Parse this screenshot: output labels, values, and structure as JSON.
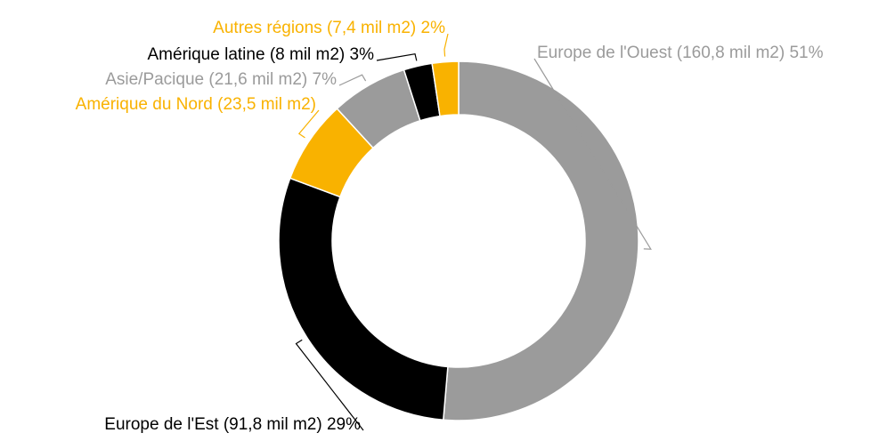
{
  "chart_data": {
    "type": "donut",
    "categories": [
      "Europe de l'Ouest",
      "Europe de l'Est",
      "Amérique du Nord",
      "Asie/Pacique",
      "Amérique latine",
      "Autres régions"
    ],
    "values": [
      160.8,
      91.8,
      23.5,
      21.6,
      8,
      7.4
    ],
    "value_labels": [
      "(160,8 mil m2) 51%",
      "(91,8 mil m2) 29%",
      "(23,5 mil m2)",
      "(21,6 mil m2) 7%",
      "(8 mil m2) 3%",
      "(7,4 mil m2) 2%"
    ],
    "colors": [
      "#9b9b9b",
      "#000000",
      "#f9b200",
      "#9b9b9b",
      "#000000",
      "#f9b200"
    ]
  }
}
